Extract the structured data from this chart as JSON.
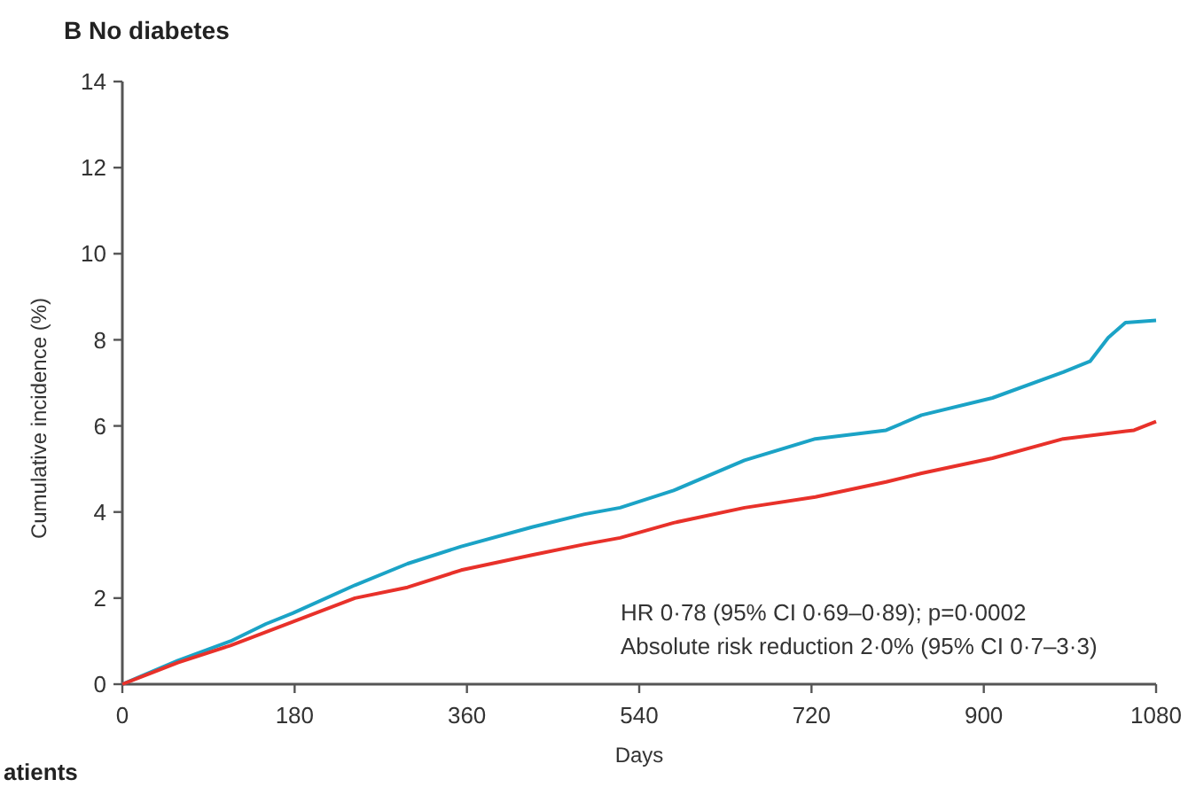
{
  "chart_data": {
    "type": "line",
    "title": "B  No diabetes",
    "xlabel": "Days",
    "ylabel": "Cumulative incidence (%)",
    "xlim": [
      0,
      1080
    ],
    "xticks": [
      0,
      180,
      360,
      540,
      720,
      900,
      1080
    ],
    "ylim": [
      0,
      14
    ],
    "yticks": [
      0,
      2,
      4,
      6,
      8,
      10,
      12,
      14
    ],
    "grid": false,
    "series": [
      {
        "color": "#1ba3c6",
        "x": [
          0,
          58,
          113,
          150,
          178,
          243,
          298,
          354,
          428,
          483,
          520,
          576,
          650,
          724,
          798,
          835,
          909,
          983,
          1011,
          1030,
          1048,
          1080
        ],
        "values": [
          0,
          0.55,
          1.0,
          1.4,
          1.65,
          2.3,
          2.8,
          3.2,
          3.65,
          3.95,
          4.1,
          4.5,
          5.2,
          5.7,
          5.9,
          6.25,
          6.65,
          7.25,
          7.5,
          8.05,
          8.4,
          8.45
        ]
      },
      {
        "color": "#e8312a",
        "x": [
          0,
          58,
          113,
          178,
          243,
          298,
          354,
          428,
          483,
          520,
          576,
          650,
          724,
          798,
          835,
          909,
          983,
          1057,
          1080
        ],
        "values": [
          0,
          0.5,
          0.9,
          1.45,
          2.0,
          2.25,
          2.65,
          3.0,
          3.25,
          3.4,
          3.75,
          4.1,
          4.35,
          4.7,
          4.9,
          5.25,
          5.7,
          5.9,
          6.1
        ]
      }
    ],
    "annotations": [
      "HR 0·78 (95% CI 0·69–0·89); p=0·0002",
      "Absolute risk reduction 2·0% (95% CI 0·7–3·3)",
      "atients"
    ]
  }
}
